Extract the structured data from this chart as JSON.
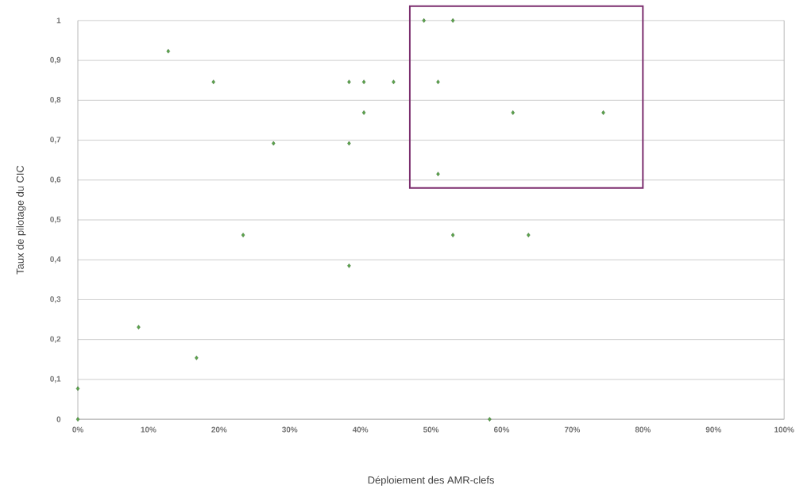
{
  "chart_data": {
    "type": "scatter",
    "xlabel": "Déploiement des AMR-clefs",
    "ylabel": "Taux de pilotage du CIC",
    "x": [
      0,
      0,
      0.086,
      0.128,
      0.168,
      0.192,
      0.234,
      0.277,
      0.384,
      0.384,
      0.384,
      0.405,
      0.405,
      0.447,
      0.49,
      0.531,
      0.51,
      0.51,
      0.531,
      0.583,
      0.616,
      0.638,
      0.744
    ],
    "series": [
      {
        "color": "#5aa64a",
        "values": [
          0.077,
          0,
          0.231,
          0.923,
          0.154,
          0.846,
          0.462,
          0.692,
          0.846,
          0.692,
          0.385,
          0.846,
          0.769,
          0.846,
          1,
          1,
          0.846,
          0.615,
          0.462,
          0,
          0.769,
          0.462,
          0.769
        ]
      }
    ],
    "xlim": [
      0,
      1
    ],
    "xticks": [
      {
        "value": 0,
        "label": "0%"
      },
      {
        "value": 0.1,
        "label": "10%"
      },
      {
        "value": 0.2,
        "label": "20%"
      },
      {
        "value": 0.3,
        "label": "30%"
      },
      {
        "value": 0.4,
        "label": "40%"
      },
      {
        "value": 0.5,
        "label": "50%"
      },
      {
        "value": 0.6,
        "label": "60%"
      },
      {
        "value": 0.7,
        "label": "70%"
      },
      {
        "value": 0.8,
        "label": "80%"
      },
      {
        "value": 0.9,
        "label": "90%"
      },
      {
        "value": 1,
        "label": "100%"
      }
    ],
    "ylim": [
      0,
      1
    ],
    "yticks": [
      0,
      {
        "value": 0.1,
        "label": "0,1"
      },
      {
        "value": 0.2,
        "label": "0,2"
      },
      {
        "value": 0.3,
        "label": "0,3"
      },
      {
        "value": 0.4,
        "label": "0,4"
      },
      {
        "value": 0.5,
        "label": "0,5"
      },
      {
        "value": 0.6,
        "label": "0,6"
      },
      {
        "value": 0.7,
        "label": "0,7"
      },
      {
        "value": 0.8,
        "label": "0,8"
      },
      {
        "value": 0.9,
        "label": "0,9"
      },
      1
    ],
    "grid": "y",
    "marker": "diamond"
  }
}
